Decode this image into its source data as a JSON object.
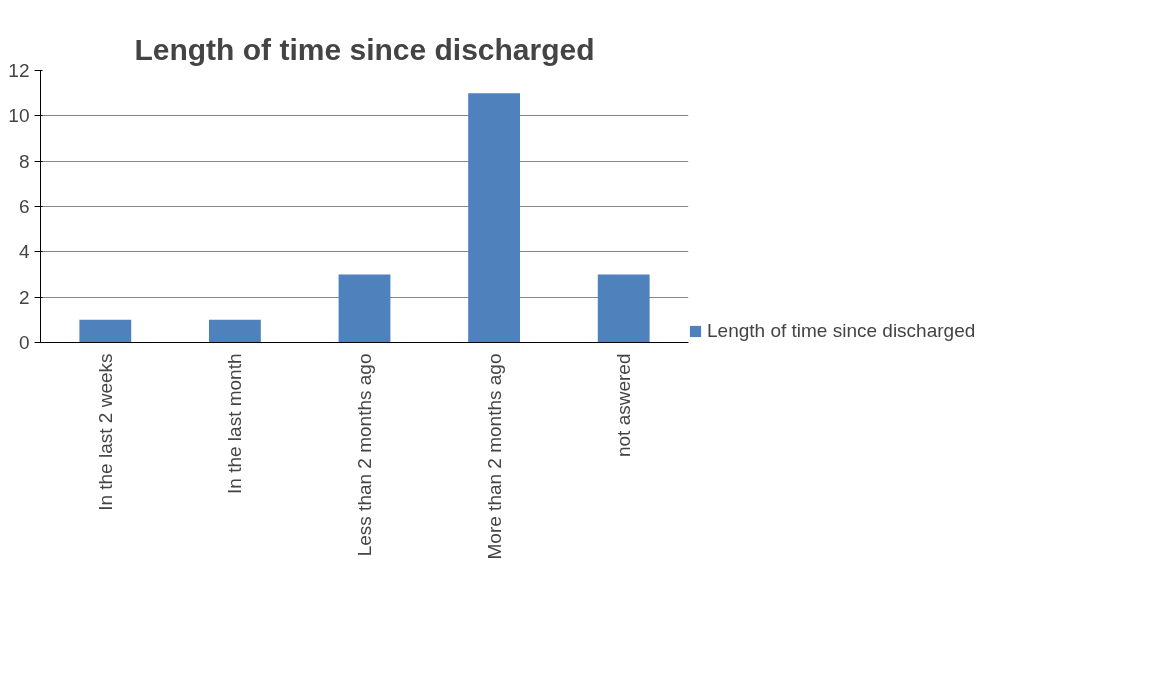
{
  "chart_data": {
    "type": "bar",
    "title": "Length of time since discharged",
    "categories": [
      "In the last 2 weeks",
      "In the last month",
      "Less than 2 months ago",
      "More than 2 months ago",
      "not aswered"
    ],
    "series": [
      {
        "name": "Length of time since discharged",
        "color": "#4f81bd",
        "values": [
          1,
          1,
          3,
          11,
          3
        ]
      }
    ],
    "ylim": [
      0,
      12
    ],
    "yticks": [
      0,
      2,
      4,
      6,
      8,
      10,
      12
    ],
    "grid": "y",
    "legend": "right"
  }
}
